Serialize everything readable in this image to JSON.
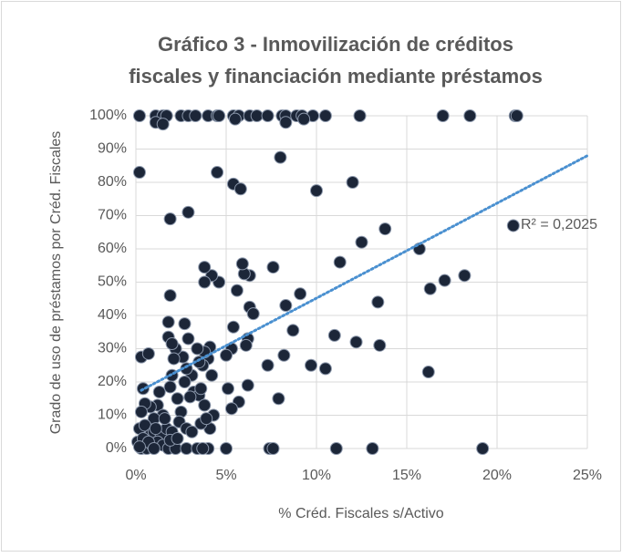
{
  "chart_data": {
    "type": "scatter",
    "title": [
      "Gráfico 3 - Inmovilización de créditos",
      "fiscales y financiación mediante préstamos"
    ],
    "x_label": "% Créd. Fiscales s/Activo",
    "y_label": "Grado de uso de préstamos por Créd. Fiscales",
    "annotation": "R² = 0,2025",
    "color": "#1c2638",
    "trendline": {
      "x": [
        0.3,
        25
      ],
      "values": [
        17.5,
        88
      ],
      "color": "#4a90d0"
    },
    "grid": true,
    "xlim": [
      0,
      25
    ],
    "xticks": [
      {
        "value": 0,
        "label": "0%"
      },
      {
        "value": 5,
        "label": "5%"
      },
      {
        "value": 10,
        "label": "10%"
      },
      {
        "value": 15,
        "label": "15%"
      },
      {
        "value": 20,
        "label": "20%"
      },
      {
        "value": 25,
        "label": "25%"
      }
    ],
    "ylim": [
      0,
      100
    ],
    "yticks": [
      {
        "value": 0,
        "label": "0%"
      },
      {
        "value": 10,
        "label": "10%"
      },
      {
        "value": 20,
        "label": "20%"
      },
      {
        "value": 30,
        "label": "30%"
      },
      {
        "value": 40,
        "label": "40%"
      },
      {
        "value": 50,
        "label": "50%"
      },
      {
        "value": 60,
        "label": "60%"
      },
      {
        "value": 70,
        "label": "70%"
      },
      {
        "value": 80,
        "label": "80%"
      },
      {
        "value": 90,
        "label": "90%"
      },
      {
        "value": 100,
        "label": "100%"
      }
    ],
    "x": [
      0.2,
      1.1,
      1.5,
      1.7,
      2.5,
      2.9,
      3.3,
      4.0,
      4.5,
      4.6,
      5.4,
      5.7,
      6.3,
      6.7,
      7.3,
      8.1,
      8.3,
      8.9,
      9.2,
      9.8,
      10.5,
      12.4,
      17.0,
      18.5,
      21.0,
      21.1,
      1.1,
      1.5,
      5.5,
      8.3,
      9.3,
      0.2,
      4.5,
      8.0,
      5.4,
      5.8,
      10.0,
      12.0,
      1.9,
      2.9,
      20.9,
      13.8,
      12.5,
      15.7,
      11.3,
      18.2,
      17.1,
      16.3,
      13.4,
      16.2,
      19.2,
      13.1,
      11.1,
      13.5,
      12.2,
      11.0,
      10.5,
      9.7,
      8.7,
      9.1,
      8.3,
      8.2,
      7.6,
      7.3,
      7.9,
      7.4,
      7.6,
      6.3,
      6.0,
      5.9,
      5.6,
      6.3,
      6.5,
      6.2,
      6.1,
      6.2,
      5.4,
      5.3,
      5.0,
      5.7,
      5.3,
      5.1,
      4.6,
      4.2,
      3.8,
      3.8,
      4.1,
      4.0,
      3.7,
      3.8,
      4.2,
      4.1,
      4.3,
      3.4,
      3.5,
      3.1,
      3.2,
      3.5,
      3.8,
      3.0,
      3.6,
      2.9,
      2.7,
      2.6,
      2.8,
      2.7,
      2.2,
      2.1,
      2.0,
      1.9,
      2.3,
      2.5,
      2.4,
      2.8,
      3.1,
      3.6,
      3.9,
      1.8,
      1.8,
      2.0,
      1.9,
      1.3,
      1.2,
      1.5,
      1.0,
      0.8,
      0.5,
      0.3,
      0.4,
      0.3,
      0.7,
      0.2,
      0.5,
      0.8,
      1.0,
      1.4,
      1.7,
      2.0,
      1.6,
      0.1,
      0.3,
      0.6,
      0.9,
      1.2,
      0.4,
      0.7,
      1.5,
      1.8,
      2.2,
      2.8,
      3.4,
      4.0,
      3.7,
      5.0,
      1.0,
      0.2,
      1.9,
      2.3,
      1.1
    ],
    "values": [
      100,
      100,
      100,
      100,
      100,
      100,
      100,
      100,
      100,
      100,
      100,
      100,
      100,
      100,
      100,
      100,
      100,
      100,
      100,
      100,
      100,
      100,
      100,
      100,
      100,
      100,
      98,
      97.5,
      99,
      98,
      99,
      83,
      83,
      87.5,
      79.5,
      78,
      77.5,
      80,
      69,
      71,
      67,
      66,
      62,
      60,
      56,
      52,
      50.5,
      48,
      44,
      23,
      0,
      0,
      0,
      31,
      32,
      34,
      24,
      25,
      35.5,
      46.5,
      43,
      28,
      54.5,
      25,
      15,
      0,
      0,
      52,
      52.5,
      55.5,
      47.5,
      42.5,
      40.5,
      33,
      31,
      19,
      36.5,
      30,
      28,
      14,
      12,
      18,
      50,
      52,
      54.5,
      50,
      30.5,
      27,
      25,
      29,
      22,
      6,
      10,
      30,
      26,
      22,
      17,
      16,
      13,
      15.5,
      18,
      33,
      37.5,
      27.5,
      24,
      20,
      30,
      27,
      22,
      18.5,
      15,
      11,
      8,
      6,
      5,
      7.5,
      9,
      38,
      33.5,
      31.5,
      46,
      17,
      13,
      10,
      9,
      12.5,
      13.5,
      11,
      18,
      27.5,
      28.5,
      6,
      7,
      4,
      5,
      4,
      6,
      5,
      9,
      2,
      0,
      0,
      1,
      2,
      3,
      2,
      1,
      0,
      0,
      0,
      0,
      0,
      0,
      0,
      0,
      0.5,
      2.5,
      3,
      6
    ]
  }
}
